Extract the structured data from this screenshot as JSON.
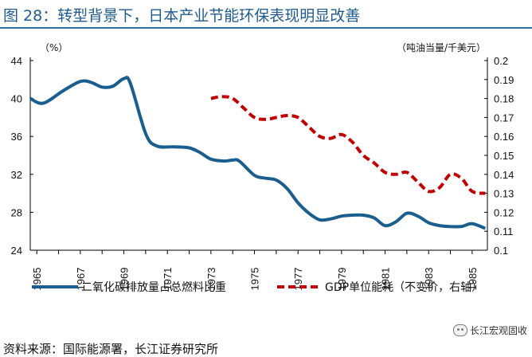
{
  "header": {
    "title": "图 28：转型背景下，日本产业节能环保表现明显改善"
  },
  "footer": {
    "source": "资料来源：国际能源署，长江证券研究所",
    "watermark": "长江宏观固收",
    "watermark_icon": "wechat-icon"
  },
  "chart_data": {
    "type": "line",
    "left_unit": "（%）",
    "right_unit": "（吨油当量/千美元）",
    "x_ticks": [
      "1965",
      "1967",
      "1969",
      "1971",
      "1973",
      "1975",
      "1977",
      "1979",
      "1981",
      "1983",
      "1985"
    ],
    "xlim": [
      1964.7,
      1985.7
    ],
    "ylim_left": [
      24,
      44
    ],
    "yticks_left": [
      "24",
      "28",
      "32",
      "36",
      "40",
      "44"
    ],
    "ylim_right": [
      0.1,
      0.2
    ],
    "yticks_right": [
      "0.1",
      "0.11",
      "0.12",
      "0.13",
      "0.14",
      "0.15",
      "0.16",
      "0.17",
      "0.18",
      "0.19",
      "0.2"
    ],
    "colors": {
      "series1": "#1a5e8f",
      "series2": "#c00000"
    },
    "series": [
      {
        "name": "二氧化碳排放量占总燃料比重",
        "axis": "left",
        "style": "solid",
        "points": [
          [
            1964.7,
            40.0
          ],
          [
            1965.3,
            39.5
          ],
          [
            1966.2,
            40.8
          ],
          [
            1967.0,
            41.8
          ],
          [
            1967.5,
            41.7
          ],
          [
            1968.0,
            41.2
          ],
          [
            1968.5,
            41.3
          ],
          [
            1969.0,
            42.1
          ],
          [
            1969.3,
            41.6
          ],
          [
            1970.0,
            36.3
          ],
          [
            1970.5,
            35.0
          ],
          [
            1971.3,
            34.9
          ],
          [
            1972.0,
            34.8
          ],
          [
            1972.5,
            34.3
          ],
          [
            1973.0,
            33.6
          ],
          [
            1973.6,
            33.4
          ],
          [
            1974.0,
            33.5
          ],
          [
            1974.3,
            33.4
          ],
          [
            1975.0,
            31.9
          ],
          [
            1975.5,
            31.6
          ],
          [
            1976.0,
            31.4
          ],
          [
            1976.5,
            30.5
          ],
          [
            1977.0,
            29.0
          ],
          [
            1977.5,
            27.9
          ],
          [
            1978.0,
            27.2
          ],
          [
            1978.5,
            27.3
          ],
          [
            1979.0,
            27.6
          ],
          [
            1979.5,
            27.7
          ],
          [
            1980.0,
            27.7
          ],
          [
            1980.5,
            27.4
          ],
          [
            1981.0,
            26.6
          ],
          [
            1981.5,
            27.0
          ],
          [
            1982.0,
            27.9
          ],
          [
            1982.5,
            27.6
          ],
          [
            1983.0,
            26.9
          ],
          [
            1983.5,
            26.6
          ],
          [
            1984.0,
            26.5
          ],
          [
            1984.5,
            26.5
          ],
          [
            1985.0,
            26.8
          ],
          [
            1985.6,
            26.3
          ]
        ]
      },
      {
        "name": "GDP单位能耗（不变价，右轴）",
        "axis": "right",
        "style": "dashed",
        "points": [
          [
            1973.0,
            0.18
          ],
          [
            1973.5,
            0.181
          ],
          [
            1974.0,
            0.18
          ],
          [
            1974.5,
            0.175
          ],
          [
            1975.0,
            0.17
          ],
          [
            1975.5,
            0.169
          ],
          [
            1976.0,
            0.17
          ],
          [
            1976.5,
            0.171
          ],
          [
            1977.0,
            0.17
          ],
          [
            1977.5,
            0.165
          ],
          [
            1978.0,
            0.16
          ],
          [
            1978.5,
            0.159
          ],
          [
            1979.0,
            0.161
          ],
          [
            1979.5,
            0.157
          ],
          [
            1980.0,
            0.15
          ],
          [
            1980.5,
            0.146
          ],
          [
            1981.0,
            0.141
          ],
          [
            1981.5,
            0.14
          ],
          [
            1982.0,
            0.141
          ],
          [
            1982.5,
            0.136
          ],
          [
            1983.0,
            0.131
          ],
          [
            1983.5,
            0.133
          ],
          [
            1984.0,
            0.14
          ],
          [
            1984.5,
            0.138
          ],
          [
            1985.0,
            0.131
          ],
          [
            1985.6,
            0.13
          ]
        ]
      }
    ]
  }
}
